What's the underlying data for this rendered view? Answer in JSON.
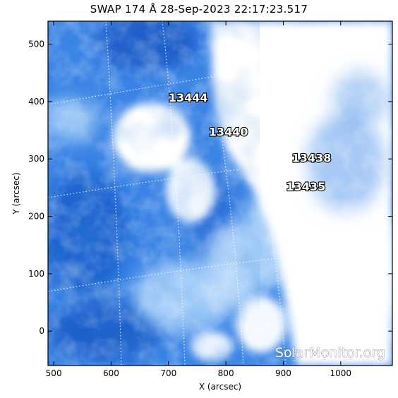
{
  "title": "SWAP 174 Å 28-Sep-2023 22:17:23.517",
  "x_axis": {
    "label": "X (arcsec)",
    "range": [
      490,
      1090
    ],
    "ticks": [
      500,
      600,
      700,
      800,
      900,
      1000
    ],
    "tick_labels": [
      "500",
      "600",
      "700",
      "800",
      "900",
      "1000"
    ]
  },
  "y_axis": {
    "label": "Y (arcsec)",
    "range": [
      -60,
      540
    ],
    "ticks": [
      0,
      100,
      200,
      300,
      400,
      500
    ],
    "tick_labels": [
      "0",
      "100",
      "200",
      "300",
      "400",
      "500"
    ]
  },
  "active_regions": [
    {
      "label": "13444",
      "x": 700,
      "y": 400
    },
    {
      "label": "13440",
      "x": 770,
      "y": 340
    },
    {
      "label": "13438",
      "x": 915,
      "y": 295
    },
    {
      "label": "13435",
      "x": 905,
      "y": 245
    }
  ],
  "watermark": "SolarMonitor.org",
  "colors": {
    "background": "#ffffff",
    "dark_blue": "#1457c4",
    "mid_blue": "#3d86e8",
    "light_blue": "#8fc0f7",
    "bright": "#ffffff"
  }
}
